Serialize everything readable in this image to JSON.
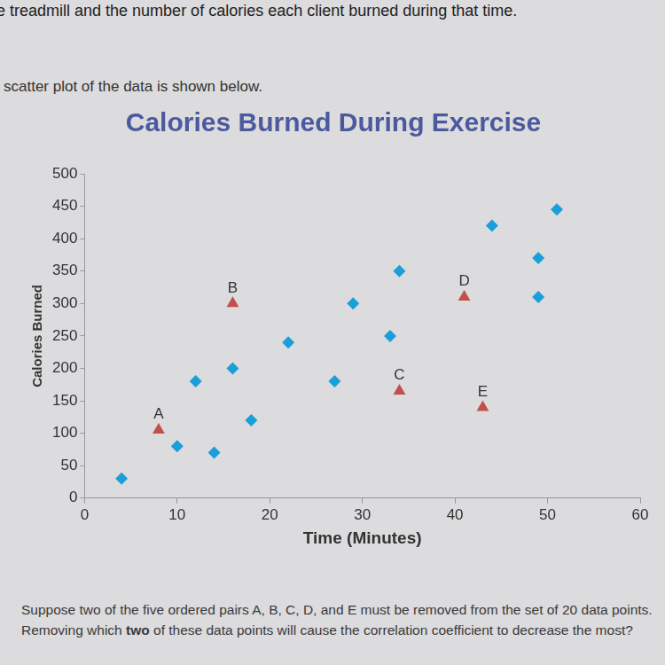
{
  "document": {
    "top_lines": [
      "e treadmill and the number of calories each client burned during that time.",
      "scatter plot of the data is shown below."
    ],
    "question": [
      "Suppose two of the five ordered pairs A, B, C, D, and E must be removed from the set of 20 data points. Removing which ",
      "two",
      " of these data points will cause the correlation coefficient to decrease the most?"
    ]
  },
  "chart_data": {
    "type": "scatter",
    "title": "Calories Burned During Exercise",
    "x_label": "Time (Minutes)",
    "y_label": "Calories Burned",
    "xlim": [
      0,
      60
    ],
    "xticks": [
      0,
      10,
      20,
      30,
      40,
      50,
      60
    ],
    "ylim": [
      0,
      500
    ],
    "yticks": [
      0,
      50,
      100,
      150,
      200,
      250,
      300,
      350,
      400,
      450,
      500
    ],
    "grid": false,
    "series": [
      {
        "color": "#1b9fd8",
        "marker": "diamond",
        "x": [
          4,
          10,
          12,
          14,
          16,
          18,
          22,
          27,
          29,
          33,
          34,
          44,
          49,
          51,
          49
        ],
        "values": [
          30,
          80,
          180,
          70,
          200,
          120,
          240,
          180,
          300,
          250,
          350,
          420,
          370,
          445,
          310
        ]
      },
      {
        "color": "#c0504d",
        "marker": "triangle",
        "x": [
          8,
          16,
          34,
          41,
          43
        ],
        "values": [
          105,
          300,
          165,
          310,
          140
        ],
        "point_labels": [
          "A",
          "B",
          "C",
          "D",
          "E"
        ]
      }
    ]
  }
}
